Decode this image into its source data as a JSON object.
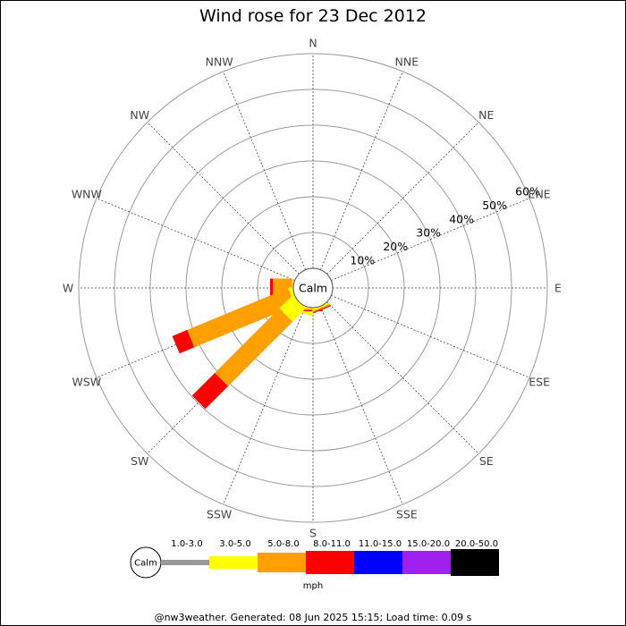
{
  "chart_data": {
    "type": "wind-rose",
    "title": "Wind rose for 23 Dec 2012",
    "directions": [
      "N",
      "NNE",
      "NE",
      "ENE",
      "E",
      "ESE",
      "SE",
      "SSE",
      "S",
      "SSW",
      "SW",
      "WSW",
      "W",
      "WNW",
      "NW",
      "NNW"
    ],
    "ring_labels": [
      "10%",
      "20%",
      "30%",
      "40%",
      "50%",
      "60%"
    ],
    "ring_values": [
      10,
      20,
      30,
      40,
      50,
      60
    ],
    "r_max_percent": 60,
    "calm_label": "Calm",
    "speed_bins": [
      "1.0-3.0",
      "3.0-5.0",
      "5.0-8.0",
      "8.0-11.0",
      "11.0-15.0",
      "15.0-20.0",
      "20.0-50.0"
    ],
    "bin_colors": [
      "#999999",
      "#ffff00",
      "#ffa000",
      "#ff0000",
      "#0000ff",
      "#a020f0",
      "#000000"
    ],
    "unit": "mph",
    "series": [
      {
        "direction": "W",
        "segments": [
          0,
          0.3,
          5.4,
          0.8,
          0,
          0,
          0
        ]
      },
      {
        "direction": "WSW",
        "segments": [
          0,
          1.0,
          30.5,
          4.5,
          0,
          0,
          0
        ]
      },
      {
        "direction": "SW",
        "segments": [
          0,
          5.2,
          25.5,
          9.0,
          0,
          0,
          0
        ]
      },
      {
        "direction": "SSW",
        "segments": [
          0,
          2.0,
          0,
          0,
          0,
          0,
          0
        ]
      },
      {
        "direction": "S",
        "segments": [
          0,
          0.3,
          0.4,
          0.3,
          0,
          0,
          0
        ]
      },
      {
        "direction": "SSE",
        "segments": [
          0,
          0.4,
          0.4,
          0.3,
          0,
          0,
          0
        ]
      }
    ]
  },
  "footer": "@nw3weather. Generated: 08 Jun 2025 15:15; Load time: 0.09 s"
}
